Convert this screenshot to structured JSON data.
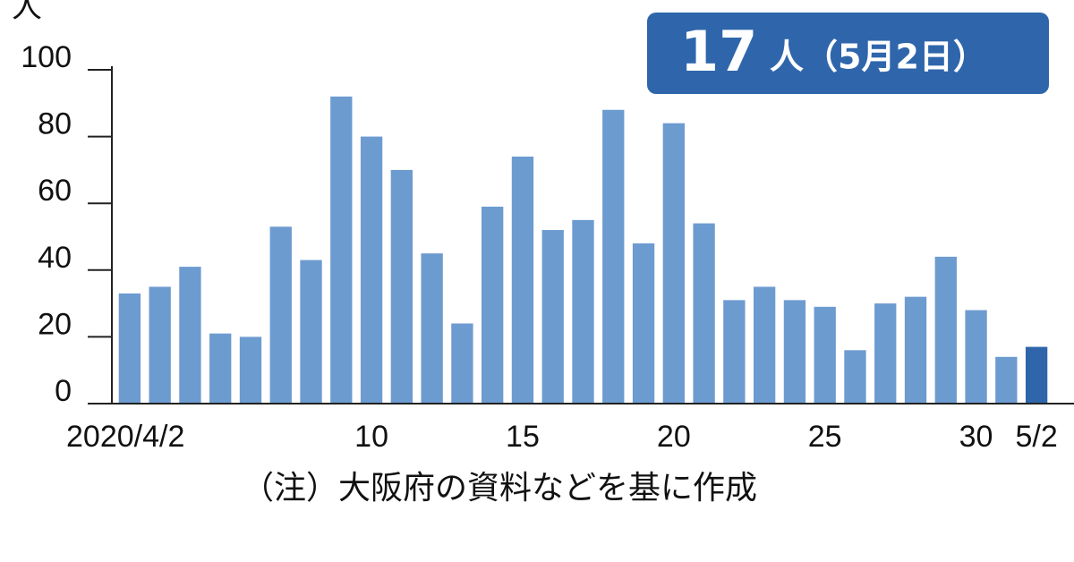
{
  "chart_data": {
    "type": "bar",
    "y_unit": "人",
    "annotation": {
      "number": "17",
      "text": "人（5月2日）"
    },
    "note": "（注）大阪府の資料などを基に作成",
    "categories": [
      "2020/4/2",
      null,
      null,
      null,
      null,
      null,
      null,
      null,
      "10",
      null,
      null,
      null,
      null,
      "15",
      null,
      null,
      null,
      null,
      "20",
      null,
      null,
      null,
      null,
      "25",
      null,
      null,
      null,
      null,
      "30",
      null,
      "5/2"
    ],
    "values": [
      33,
      35,
      41,
      21,
      20,
      53,
      43,
      92,
      80,
      70,
      45,
      24,
      59,
      74,
      52,
      55,
      88,
      48,
      84,
      54,
      31,
      35,
      31,
      29,
      16,
      30,
      32,
      44,
      28,
      14,
      17
    ],
    "color": "#6c9bd0",
    "highlight": {
      "index": 30,
      "color": "#2f66ab"
    },
    "ylim": [
      0,
      100
    ],
    "yticks": [
      0,
      20,
      40,
      60,
      80,
      100
    ]
  }
}
